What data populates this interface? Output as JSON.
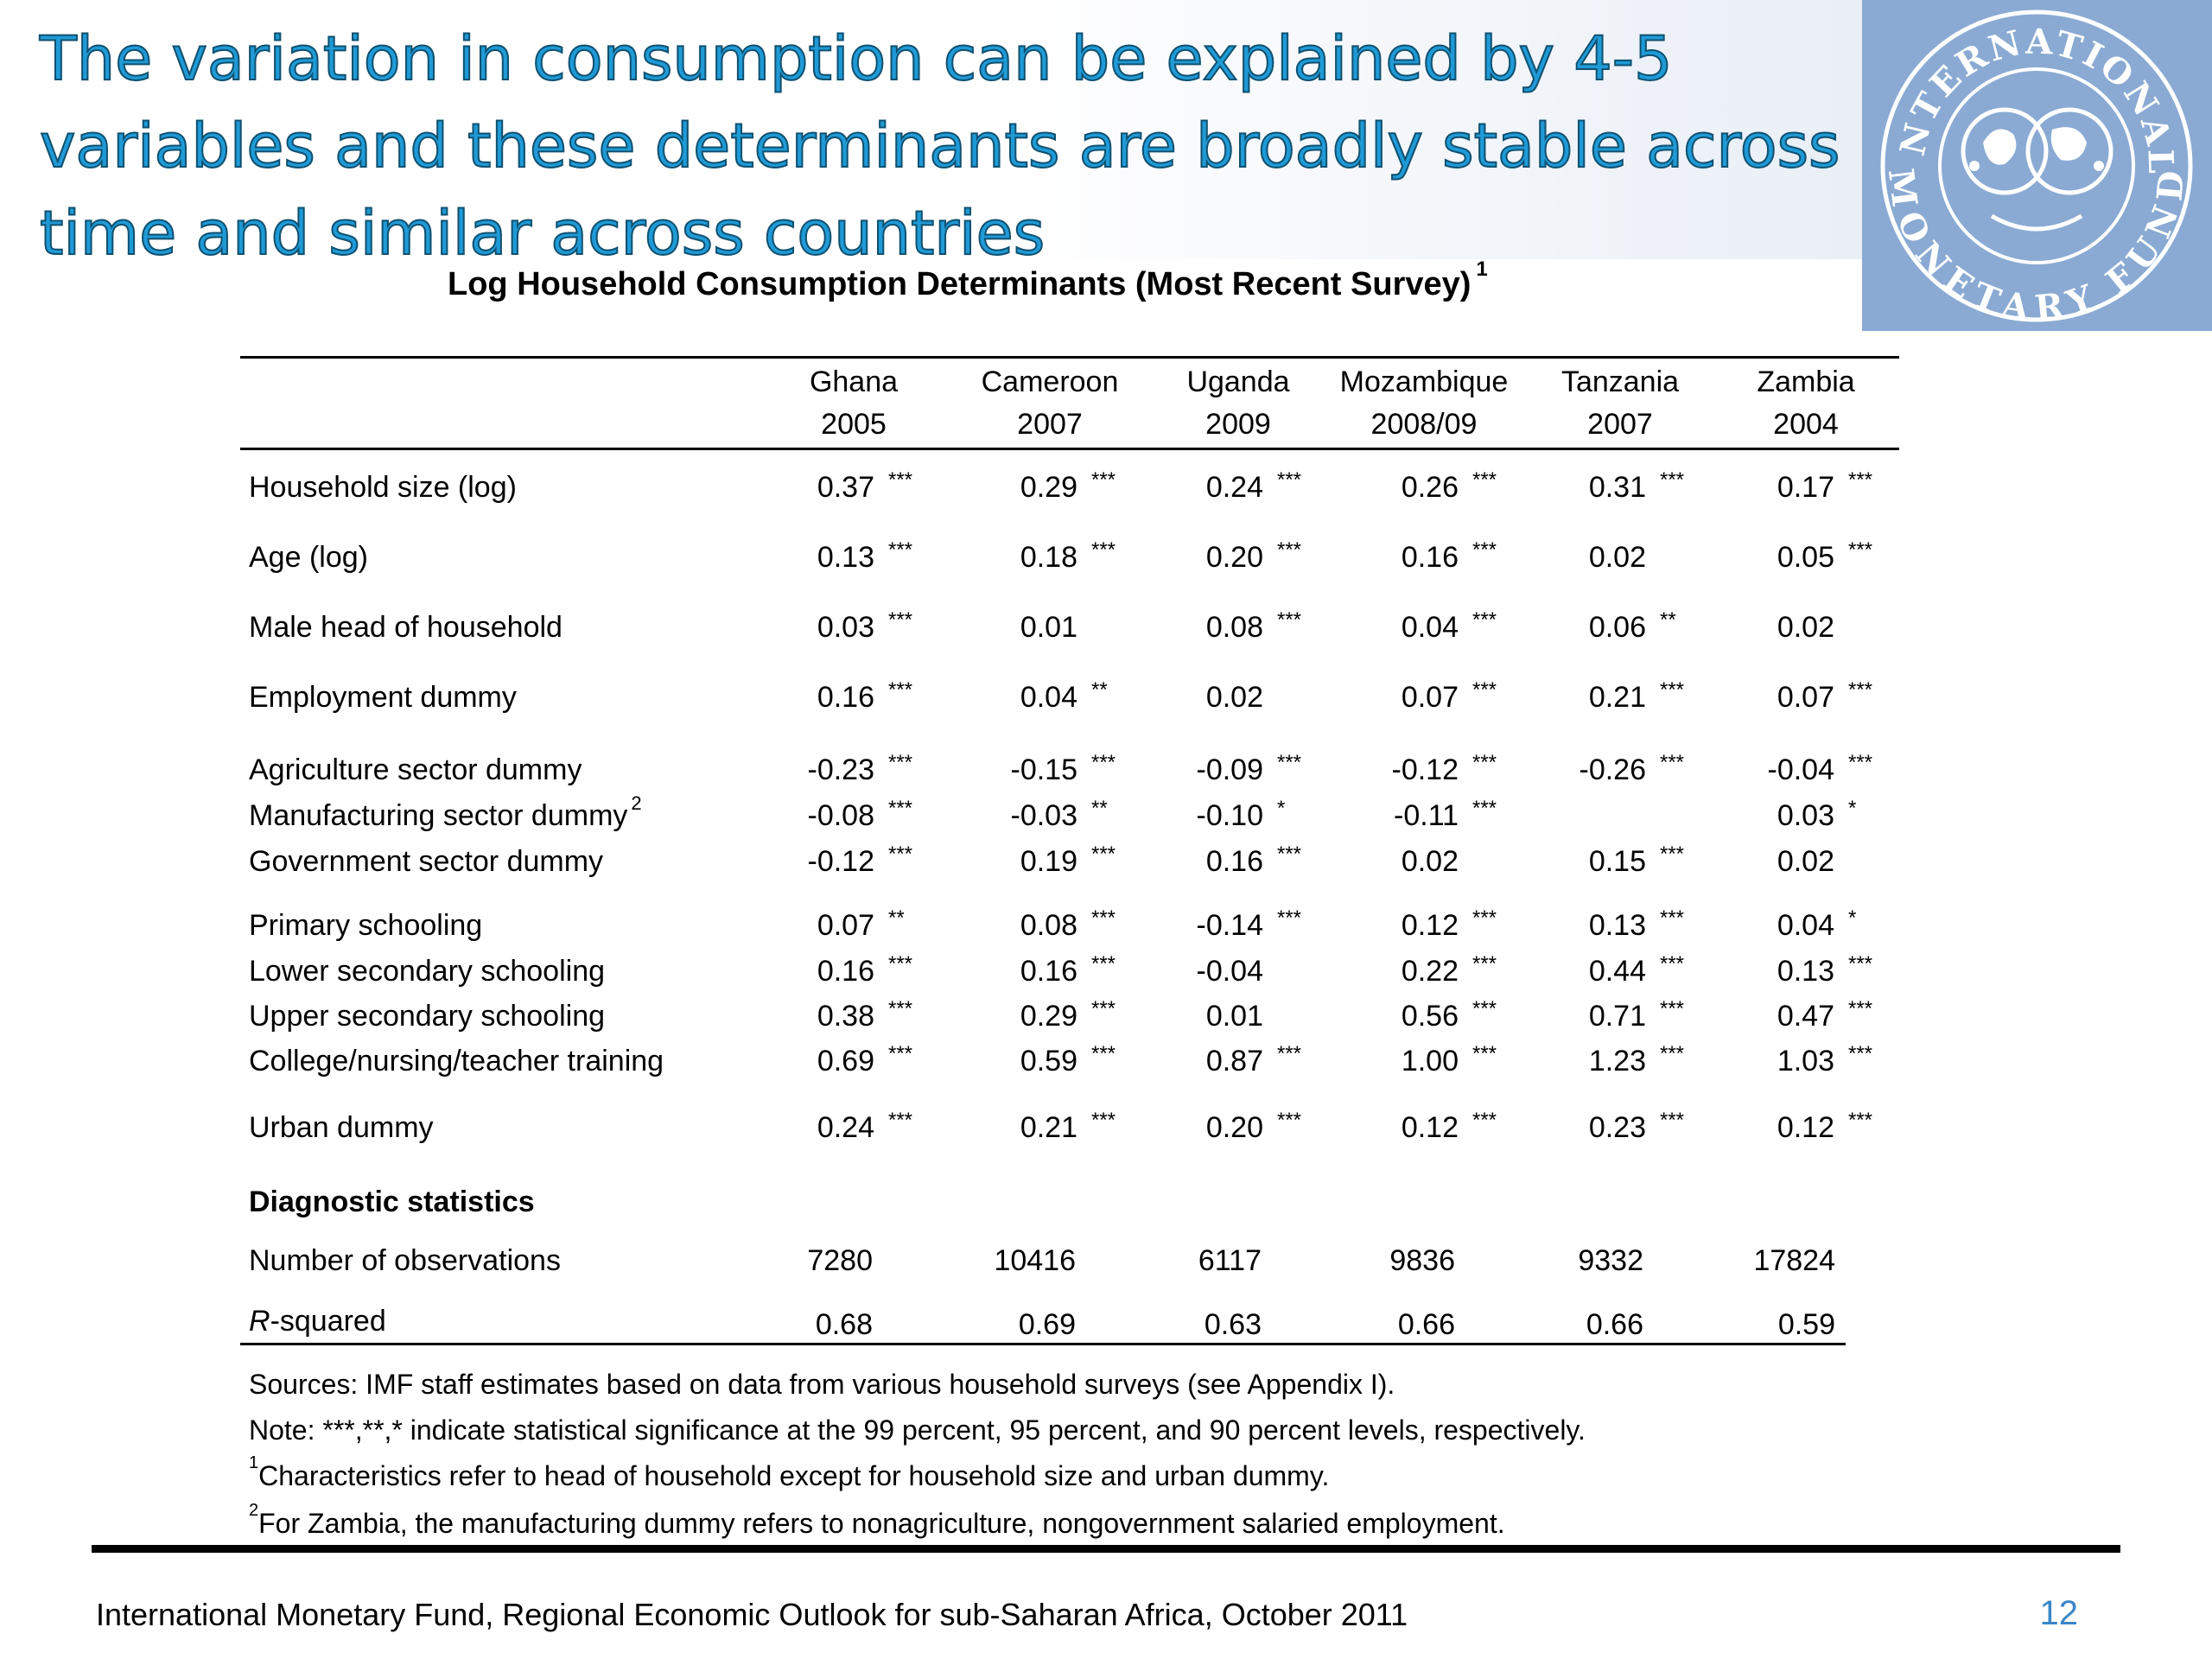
{
  "slide_title": "The variation in consumption can be explained by 4-5 variables and these determinants are broadly stable across time and similar across countries",
  "logo": {
    "name": "imf-seal",
    "top_text": "INTERNATIONAL",
    "bottom_text": "MONETARY FUND",
    "background": "#8aaad3",
    "ink": "#ffffff"
  },
  "table": {
    "title": "Log Household Consumption Determinants (Most Recent Survey)",
    "title_footnote": "1",
    "columns": [
      {
        "country": "Ghana",
        "year": "2005"
      },
      {
        "country": "Cameroon",
        "year": "2007"
      },
      {
        "country": "Uganda",
        "year": "2009"
      },
      {
        "country": "Mozambique",
        "year": "2008/09"
      },
      {
        "country": "Tanzania",
        "year": "2007"
      },
      {
        "country": "Zambia",
        "year": "2004"
      }
    ],
    "rows": [
      {
        "label": "Household size (log)",
        "sup": "",
        "cells": [
          [
            "0.37",
            "***"
          ],
          [
            "0.29",
            "***"
          ],
          [
            "0.24",
            "***"
          ],
          [
            "0.26",
            "***"
          ],
          [
            "0.31",
            "***"
          ],
          [
            "0.17",
            "***"
          ]
        ]
      },
      {
        "label": "Age (log)",
        "sup": "",
        "cells": [
          [
            "0.13",
            "***"
          ],
          [
            "0.18",
            "***"
          ],
          [
            "0.20",
            "***"
          ],
          [
            "0.16",
            "***"
          ],
          [
            "0.02",
            ""
          ],
          [
            "0.05",
            "***"
          ]
        ]
      },
      {
        "label": "Male head of household",
        "sup": "",
        "cells": [
          [
            "0.03",
            "***"
          ],
          [
            "0.01",
            ""
          ],
          [
            "0.08",
            "***"
          ],
          [
            "0.04",
            "***"
          ],
          [
            "0.06",
            "**"
          ],
          [
            "0.02",
            ""
          ]
        ]
      },
      {
        "label": "Employment dummy",
        "sup": "",
        "cells": [
          [
            "0.16",
            "***"
          ],
          [
            "0.04",
            "**"
          ],
          [
            "0.02",
            ""
          ],
          [
            "0.07",
            "***"
          ],
          [
            "0.21",
            "***"
          ],
          [
            "0.07",
            "***"
          ]
        ]
      },
      {
        "label": "Agriculture sector dummy",
        "sup": "",
        "cells": [
          [
            "-0.23",
            "***"
          ],
          [
            "-0.15",
            "***"
          ],
          [
            "-0.09",
            "***"
          ],
          [
            "-0.12",
            "***"
          ],
          [
            "-0.26",
            "***"
          ],
          [
            "-0.04",
            "***"
          ]
        ]
      },
      {
        "label": "Manufacturing sector dummy",
        "sup": "2",
        "cells": [
          [
            "-0.08",
            "***"
          ],
          [
            "-0.03",
            "**"
          ],
          [
            "-0.10",
            "*"
          ],
          [
            "-0.11",
            "***"
          ],
          [
            "",
            ""
          ],
          [
            "0.03",
            "*"
          ]
        ]
      },
      {
        "label": "Government sector dummy",
        "sup": "",
        "cells": [
          [
            "-0.12",
            "***"
          ],
          [
            "0.19",
            "***"
          ],
          [
            "0.16",
            "***"
          ],
          [
            "0.02",
            ""
          ],
          [
            "0.15",
            "***"
          ],
          [
            "0.02",
            ""
          ]
        ]
      },
      {
        "label": "Primary schooling",
        "sup": "",
        "cells": [
          [
            "0.07",
            "**"
          ],
          [
            "0.08",
            "***"
          ],
          [
            "-0.14",
            "***"
          ],
          [
            "0.12",
            "***"
          ],
          [
            "0.13",
            "***"
          ],
          [
            "0.04",
            "*"
          ]
        ]
      },
      {
        "label": "Lower secondary schooling",
        "sup": "",
        "cells": [
          [
            "0.16",
            "***"
          ],
          [
            "0.16",
            "***"
          ],
          [
            "-0.04",
            ""
          ],
          [
            "0.22",
            "***"
          ],
          [
            "0.44",
            "***"
          ],
          [
            "0.13",
            "***"
          ]
        ]
      },
      {
        "label": "Upper secondary schooling",
        "sup": "",
        "cells": [
          [
            "0.38",
            "***"
          ],
          [
            "0.29",
            "***"
          ],
          [
            "0.01",
            ""
          ],
          [
            "0.56",
            "***"
          ],
          [
            "0.71",
            "***"
          ],
          [
            "0.47",
            "***"
          ]
        ]
      },
      {
        "label": "College/nursing/teacher training",
        "sup": "",
        "cells": [
          [
            "0.69",
            "***"
          ],
          [
            "0.59",
            "***"
          ],
          [
            "0.87",
            "***"
          ],
          [
            "1.00",
            "***"
          ],
          [
            "1.23",
            "***"
          ],
          [
            "1.03",
            "***"
          ]
        ]
      },
      {
        "label": "Urban dummy",
        "sup": "",
        "cells": [
          [
            "0.24",
            "***"
          ],
          [
            "0.21",
            "***"
          ],
          [
            "0.20",
            "***"
          ],
          [
            "0.12",
            "***"
          ],
          [
            "0.23",
            "***"
          ],
          [
            "0.12",
            "***"
          ]
        ]
      }
    ],
    "diagnostics_heading": "Diagnostic statistics",
    "observations": {
      "label": "Number of observations",
      "values": [
        "7280",
        "10416",
        "6117",
        "9836",
        "9332",
        "17824"
      ]
    },
    "rsquared": {
      "label_italic": "R",
      "label_rest": "-squared",
      "values": [
        "0.68",
        "0.69",
        "0.63",
        "0.66",
        "0.66",
        "0.59"
      ]
    },
    "notes": [
      {
        "sup": "",
        "text": "Sources: IMF staff estimates based on data from various household surveys (see Appendix I)."
      },
      {
        "sup": "",
        "text": "Note: ***,**,* indicate statistical significance at the 99 percent, 95 percent, and 90 percent levels, respectively."
      },
      {
        "sup": "1",
        "text": "Characteristics refer to head of household except for household size and urban dummy."
      },
      {
        "sup": "2",
        "text": "For Zambia, the manufacturing dummy refers to nonagriculture, nongovernment salaried employment."
      }
    ]
  },
  "footer": "International Monetary Fund, Regional Economic Outlook for sub-Saharan Africa, October 2011",
  "page_number": "12",
  "colors": {
    "title_fill": "#1f9ad6",
    "title_outline": "#10506f",
    "page_number": "#3a86c8"
  }
}
